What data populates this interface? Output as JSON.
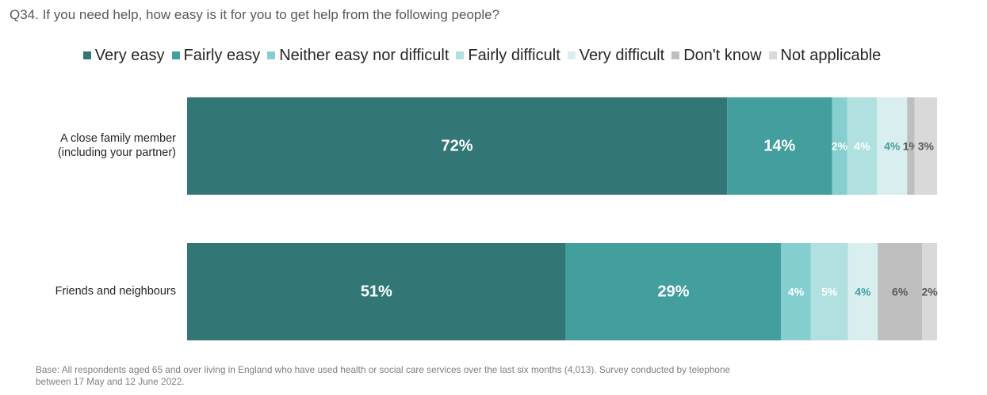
{
  "title": "Q34. If you need help, how easy is it for you to get help from the following people?",
  "legend": [
    {
      "label": "Very easy",
      "color": "#327776"
    },
    {
      "label": "Fairly easy",
      "color": "#429F9E"
    },
    {
      "label": "Neither easy nor difficult",
      "color": "#86CFD0"
    },
    {
      "label": "Fairly difficult",
      "color": "#B1E0E0"
    },
    {
      "label": "Very difficult",
      "color": "#D8EEEF"
    },
    {
      "label": "Don't know",
      "color": "#BFBFBF"
    },
    {
      "label": "Not applicable",
      "color": "#D9D9D9"
    }
  ],
  "chart_data": {
    "type": "bar",
    "orientation": "horizontal",
    "stacked": true,
    "title": "Q34. If you need help, how easy is it for you to get help from the following people?",
    "xlim": [
      0,
      100
    ],
    "categories": [
      [
        "A close family member",
        "(including your partner)"
      ],
      [
        "Friends and neighbours"
      ]
    ],
    "series": [
      {
        "name": "Very easy",
        "color": "#327776",
        "values": [
          72,
          51
        ],
        "labels": [
          "72%",
          "51%"
        ],
        "label_color": "#ffffff",
        "label_size": "large"
      },
      {
        "name": "Fairly easy",
        "color": "#429F9E",
        "values": [
          14,
          29
        ],
        "labels": [
          "14%",
          "29%"
        ],
        "label_color": "#ffffff",
        "label_size": "large"
      },
      {
        "name": "Neither easy nor difficult",
        "color": "#86CFD0",
        "values": [
          2,
          4
        ],
        "labels": [
          "2%",
          "4%"
        ],
        "label_color": "#ffffff",
        "label_size": "small"
      },
      {
        "name": "Fairly difficult",
        "color": "#B1E0E0",
        "values": [
          4,
          5
        ],
        "labels": [
          "4%",
          "5%"
        ],
        "label_color": "#ffffff",
        "label_size": "small"
      },
      {
        "name": "Very difficult",
        "color": "#D8EEEF",
        "values": [
          4,
          4
        ],
        "labels": [
          "4%",
          "4%"
        ],
        "label_color": "#429F9E",
        "label_size": "small"
      },
      {
        "name": "Don't know",
        "color": "#BFBFBF",
        "values": [
          1,
          6
        ],
        "labels": [
          "1%",
          "6%"
        ],
        "label_color": "#595959",
        "label_size": "small"
      },
      {
        "name": "Not applicable",
        "color": "#D9D9D9",
        "values": [
          3,
          2
        ],
        "labels": [
          "3%",
          "2%"
        ],
        "label_color": "#595959",
        "label_size": "small"
      }
    ]
  },
  "footer": {
    "line1": "Base: All respondents aged 65 and over living in England who have used health or social care services over the last six months (4,013). Survey conducted by telephone",
    "line2": "between 17 May and 12 June 2022."
  }
}
